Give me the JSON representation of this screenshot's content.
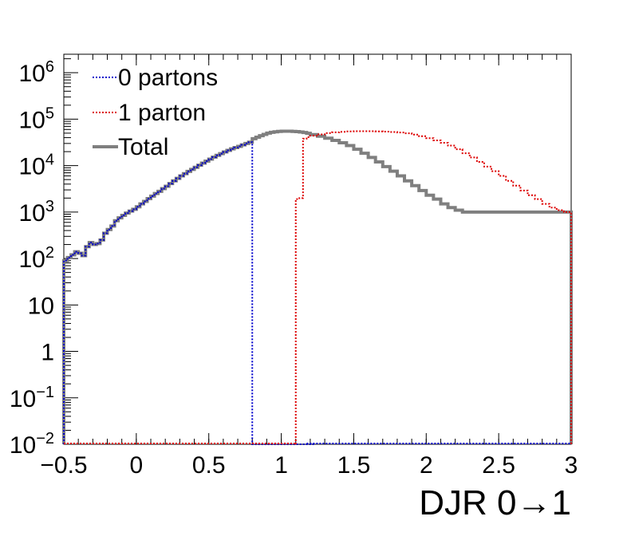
{
  "chart_data": {
    "type": "line",
    "title": "",
    "xlabel": "DJR 0→1",
    "ylabel": "",
    "xlim": [
      -0.5,
      3.0
    ],
    "ylim": [
      0.01,
      2500000
    ],
    "yscale": "log",
    "bin_width": 0.075,
    "x_ticks": [
      {
        "v": -0.5,
        "label": "−0.5"
      },
      {
        "v": 0,
        "label": "0"
      },
      {
        "v": 0.5,
        "label": "0.5"
      },
      {
        "v": 1,
        "label": "1"
      },
      {
        "v": 1.5,
        "label": "1.5"
      },
      {
        "v": 2,
        "label": "2"
      },
      {
        "v": 2.5,
        "label": "2.5"
      },
      {
        "v": 3,
        "label": "3"
      }
    ],
    "y_ticks": [
      {
        "v": 0.01,
        "base": "10",
        "exp": "−2"
      },
      {
        "v": 0.1,
        "base": "10",
        "exp": "−1"
      },
      {
        "v": 1,
        "base": "1",
        "exp": ""
      },
      {
        "v": 10,
        "base": "10",
        "exp": ""
      },
      {
        "v": 100,
        "base": "10",
        "exp": "2"
      },
      {
        "v": 1000,
        "base": "10",
        "exp": "3"
      },
      {
        "v": 10000,
        "base": "10",
        "exp": "4"
      },
      {
        "v": 100000,
        "base": "10",
        "exp": "5"
      },
      {
        "v": 1000000,
        "base": "10",
        "exp": "6"
      }
    ],
    "legend_position": "top-left",
    "series": [
      {
        "name": "0 partons",
        "color": "#0000cc",
        "style": "dotted",
        "x": [
          -0.5,
          -0.475,
          -0.45,
          -0.425,
          -0.4,
          -0.375,
          -0.35,
          -0.325,
          -0.3,
          -0.275,
          -0.25,
          -0.225,
          -0.2,
          -0.175,
          -0.15,
          -0.125,
          -0.1,
          -0.075,
          -0.05,
          -0.025,
          0,
          0.025,
          0.05,
          0.075,
          0.1,
          0.125,
          0.15,
          0.175,
          0.2,
          0.225,
          0.25,
          0.275,
          0.3,
          0.325,
          0.35,
          0.375,
          0.4,
          0.425,
          0.45,
          0.475,
          0.5,
          0.525,
          0.55,
          0.575,
          0.6,
          0.625,
          0.65,
          0.675,
          0.7,
          0.725,
          0.75,
          0.775,
          0.8,
          0.825,
          0.85,
          0.875,
          0.9,
          0.925,
          0.95,
          0.975,
          1.0,
          1.025,
          1.05,
          1.075,
          1.1,
          1.125,
          1.15,
          1.175
        ],
        "y": [
          90,
          105,
          120,
          140,
          130,
          115,
          180,
          220,
          200,
          210,
          250,
          350,
          420,
          500,
          650,
          750,
          850,
          950,
          1050,
          1150,
          1300,
          1500,
          1700,
          1950,
          2200,
          2500,
          2800,
          3200,
          3600,
          4100,
          4700,
          5300,
          6000,
          6700,
          7500,
          8300,
          9200,
          10200,
          11300,
          12500,
          13800,
          15200,
          16600,
          18100,
          19700,
          21300,
          23000,
          24500,
          26000,
          28000,
          30000,
          32000,
          0.01,
          0.01,
          0.01,
          0.01,
          0.01,
          0.01,
          0.01,
          0.01,
          0.01,
          0.01,
          0.01,
          0.01,
          0.01,
          0.01,
          0.01,
          0.01
        ]
      },
      {
        "name": "1 parton",
        "color": "#dd0000",
        "style": "dotted",
        "x": [
          1.1,
          1.125,
          1.15,
          1.175,
          1.2,
          1.25,
          1.3,
          1.35,
          1.4,
          1.45,
          1.5,
          1.55,
          1.6,
          1.65,
          1.7,
          1.75,
          1.8,
          1.85,
          1.9,
          1.95,
          2.0,
          2.05,
          2.1,
          2.15,
          2.2,
          2.25,
          2.3,
          2.35,
          2.4,
          2.45,
          2.5,
          2.55,
          2.6,
          2.65,
          2.7,
          2.75,
          2.8,
          2.85,
          2.9,
          2.95
        ],
        "y": [
          1900,
          2000,
          38000,
          41000,
          44000,
          47000,
          50000,
          52000,
          53500,
          54500,
          55000,
          55000,
          55000,
          54500,
          54000,
          53000,
          51500,
          49500,
          46500,
          43000,
          39000,
          35000,
          31000,
          27000,
          22500,
          18500,
          15000,
          12000,
          9500,
          7600,
          6000,
          4700,
          3700,
          2900,
          2300,
          1900,
          1500,
          1250,
          1100,
          1000
        ]
      },
      {
        "name": "Total",
        "color": "#7f7f7f",
        "style": "solid",
        "x": [
          -0.5,
          -0.475,
          -0.45,
          -0.425,
          -0.4,
          -0.375,
          -0.35,
          -0.325,
          -0.3,
          -0.275,
          -0.25,
          -0.225,
          -0.2,
          -0.175,
          -0.15,
          -0.125,
          -0.1,
          -0.075,
          -0.05,
          -0.025,
          0,
          0.025,
          0.05,
          0.075,
          0.1,
          0.125,
          0.15,
          0.175,
          0.2,
          0.225,
          0.25,
          0.275,
          0.3,
          0.325,
          0.35,
          0.375,
          0.4,
          0.425,
          0.45,
          0.475,
          0.5,
          0.525,
          0.55,
          0.575,
          0.6,
          0.625,
          0.65,
          0.675,
          0.7,
          0.725,
          0.75,
          0.775,
          0.8,
          0.825,
          0.85,
          0.875,
          0.9,
          0.925,
          0.95,
          0.975,
          1.0,
          1.025,
          1.05,
          1.075,
          1.1,
          1.125,
          1.15,
          1.175,
          1.2,
          1.25,
          1.3,
          1.35,
          1.4,
          1.45,
          1.5,
          1.55,
          1.6,
          1.65,
          1.7,
          1.75,
          1.8,
          1.85,
          1.9,
          1.95,
          2.0,
          2.05,
          2.1,
          2.15,
          2.2,
          2.25,
          2.3,
          2.35,
          2.4,
          2.45,
          2.5,
          2.55,
          2.6,
          2.65,
          2.7,
          2.75,
          2.8,
          2.85,
          2.9,
          2.95
        ],
        "y": [
          90,
          105,
          120,
          140,
          130,
          115,
          180,
          220,
          200,
          210,
          250,
          350,
          420,
          500,
          650,
          750,
          850,
          950,
          1050,
          1150,
          1300,
          1500,
          1700,
          1950,
          2200,
          2500,
          2800,
          3200,
          3600,
          4100,
          4700,
          5300,
          6000,
          6700,
          7500,
          8300,
          9200,
          10200,
          11300,
          12500,
          13800,
          15200,
          16600,
          18100,
          19700,
          21300,
          23000,
          24500,
          26000,
          28000,
          30000,
          32000,
          38000,
          41000,
          44000,
          47000,
          50000,
          52000,
          53500,
          54500,
          55000,
          55000,
          55000,
          54500,
          54000,
          53000,
          51500,
          49500,
          46500,
          43000,
          39000,
          35000,
          31000,
          27000,
          22500,
          18500,
          15000,
          12000,
          9500,
          7600,
          6000,
          4700,
          3700,
          2900,
          2300,
          1900,
          1500,
          1250,
          1100,
          1000,
          1000,
          1000,
          1000,
          1000,
          1000,
          1000,
          1000,
          1000,
          1000,
          1000,
          1000,
          1000,
          1000,
          1000
        ]
      }
    ]
  }
}
